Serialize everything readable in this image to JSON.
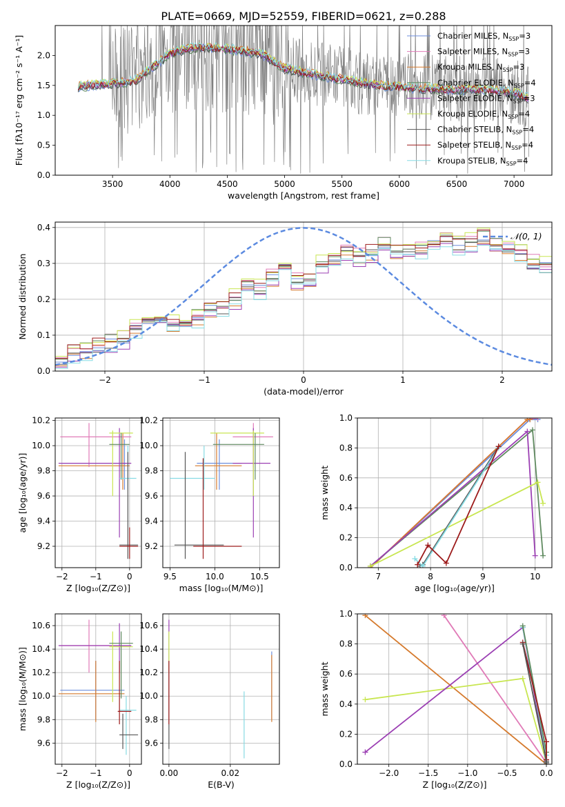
{
  "figure": {
    "title": "PLATE=0669, MJD=52559, FIBERID=0621, z=0.288"
  },
  "colors": {
    "chabrier_miles": "#6c8edc",
    "salpeter_miles": "#e07ab7",
    "kroupa_miles": "#d57a2d",
    "chabrier_elodie": "#5f8a5f",
    "salpeter_elodie": "#9b3fb3",
    "kroupa_elodie": "#c8e650",
    "chabrier_stelib": "#555555",
    "salpeter_stelib": "#9c1a1a",
    "kroupa_stelib": "#86dbe3",
    "data": "#808080",
    "normal": "#5b8ae0",
    "grid": "#b0b0b0"
  },
  "chart_data": [
    {
      "id": "spectrum",
      "type": "line",
      "xlabel": "wavelength [Angstrom, rest frame]",
      "ylabel": "Flux [fλ10⁻¹⁷ erg cm⁻² s⁻¹ A⁻¹]",
      "xlim": [
        3000,
        7330
      ],
      "ylim": [
        0,
        2.5
      ],
      "xticks": [
        3500,
        4000,
        4500,
        5000,
        5500,
        6000,
        6500,
        7000
      ],
      "yticks": [
        0.0,
        0.5,
        1.0,
        1.5,
        2.0
      ],
      "grid": false,
      "legend_position": "upper-right",
      "continuum_x": [
        3200,
        3500,
        3700,
        3800,
        4000,
        4200,
        4400,
        4600,
        4800,
        5000,
        5200,
        5500,
        5800,
        6100,
        6400,
        6700,
        7000,
        7130
      ],
      "continuum_y": [
        1.5,
        1.55,
        1.6,
        1.75,
        2.05,
        2.15,
        2.15,
        2.1,
        2.05,
        1.8,
        1.72,
        1.62,
        1.52,
        1.48,
        1.45,
        1.45,
        1.4,
        1.3
      ],
      "series": [
        {
          "name": "Chabrier MILES, N",
          "sub": "SSP",
          "suffix": "=3",
          "color_key": "chabrier_miles"
        },
        {
          "name": "Salpeter MILES, N",
          "sub": "SSP",
          "suffix": "=3",
          "color_key": "salpeter_miles"
        },
        {
          "name": "Kroupa MILES, N",
          "sub": "SSP",
          "suffix": "=3",
          "color_key": "kroupa_miles"
        },
        {
          "name": "Chabrier ELODIE, N",
          "sub": "SSP",
          "suffix": "=4",
          "color_key": "chabrier_elodie"
        },
        {
          "name": "Salpeter ELODIE, N",
          "sub": "SSP",
          "suffix": "=3",
          "color_key": "salpeter_elodie"
        },
        {
          "name": "Kroupa ELODIE, N",
          "sub": "SSP",
          "suffix": "=4",
          "color_key": "kroupa_elodie"
        },
        {
          "name": "Chabrier STELIB, N",
          "sub": "SSP",
          "suffix": "=4",
          "color_key": "chabrier_stelib"
        },
        {
          "name": "Salpeter STELIB, N",
          "sub": "SSP",
          "suffix": "=4",
          "color_key": "salpeter_stelib"
        },
        {
          "name": "Kroupa STELIB, N",
          "sub": "SSP",
          "suffix": "=4",
          "color_key": "kroupa_stelib"
        }
      ]
    },
    {
      "id": "residuals",
      "type": "histogram",
      "xlabel": "(data-model)/error",
      "ylabel": "Normed distribution",
      "xlim": [
        -2.5,
        2.5
      ],
      "ylim": [
        0,
        0.415
      ],
      "xticks": [
        -2,
        -1,
        0,
        1,
        2
      ],
      "yticks": [
        0.0,
        0.1,
        0.2,
        0.3,
        0.4
      ],
      "grid": true,
      "legend": "𝒩(0, 1)",
      "bin_width": 0.125,
      "bin_values": [
        0.04,
        0.05,
        0.06,
        0.07,
        0.08,
        0.09,
        0.12,
        0.14,
        0.14,
        0.13,
        0.13,
        0.15,
        0.17,
        0.18,
        0.2,
        0.24,
        0.23,
        0.26,
        0.29,
        0.25,
        0.25,
        0.3,
        0.31,
        0.33,
        0.32,
        0.33,
        0.35,
        0.33,
        0.34,
        0.34,
        0.35,
        0.36,
        0.35,
        0.36,
        0.37,
        0.35,
        0.34,
        0.33,
        0.3,
        0.29,
        0.28,
        0.26,
        0.22,
        0.23,
        0.2,
        0.2,
        0.17,
        0.16,
        0.15,
        0.14,
        0.14,
        0.12,
        0.12,
        0.11,
        0.09,
        0.1,
        0.08,
        0.07,
        0.06,
        0.07,
        0.06,
        0.06,
        0.05,
        0.04
      ],
      "offsets": [
        0.0,
        0.012,
        -0.01,
        0.008,
        -0.014,
        0.016,
        -0.006,
        0.01,
        -0.018
      ]
    },
    {
      "id": "age_vs_Z",
      "type": "errorbar",
      "xlabel": "Z [log₁₀(Z/Z⊙)]",
      "ylabel": "age  [log₁₀(age/yr)]",
      "xlim": [
        -2.2,
        0.35
      ],
      "ylim": [
        9.03,
        10.22
      ],
      "xticks": [
        -2,
        -1,
        0
      ],
      "yticks": [
        9.2,
        9.4,
        9.6,
        9.8,
        10.0,
        10.2
      ],
      "grid": true,
      "points": [
        {
          "c": "chabrier_miles",
          "x": -0.15,
          "xe": [
            -2.05,
            0.0
          ],
          "y": 9.86,
          "ye": [
            9.65,
            10.05
          ]
        },
        {
          "c": "kroupa_miles",
          "x": -0.2,
          "xe": [
            -2.1,
            0.0
          ],
          "y": 9.84,
          "ye": [
            9.65,
            10.1
          ]
        },
        {
          "c": "salpeter_miles",
          "x": -1.2,
          "xe": [
            -2.05,
            0.05
          ],
          "y": 10.07,
          "ye": [
            9.83,
            10.18
          ]
        },
        {
          "c": "salpeter_elodie",
          "x": -0.3,
          "xe": [
            -2.1,
            0.05
          ],
          "y": 9.86,
          "ye": [
            9.27,
            10.14
          ]
        },
        {
          "c": "kroupa_elodie",
          "x": -0.5,
          "xe": [
            -0.6,
            0.1
          ],
          "y": 10.1,
          "ye": [
            9.6,
            10.12
          ]
        },
        {
          "c": "chabrier_elodie",
          "x": -0.25,
          "xe": [
            -0.6,
            0.0
          ],
          "y": 10.01,
          "ye": [
            9.73,
            10.1
          ]
        },
        {
          "c": "kroupa_stelib",
          "x": -0.05,
          "xe": [
            -0.3,
            0.2
          ],
          "y": 9.74,
          "ye": [
            9.65,
            10.0
          ]
        },
        {
          "c": "chabrier_stelib",
          "x": -0.05,
          "xe": [
            -0.3,
            0.25
          ],
          "y": 9.21,
          "ye": [
            9.1,
            9.95
          ]
        },
        {
          "c": "salpeter_stelib",
          "x": 0.0,
          "xe": [
            -0.3,
            0.25
          ],
          "y": 9.2,
          "ye": [
            9.1,
            9.35
          ]
        }
      ]
    },
    {
      "id": "age_vs_mass",
      "type": "errorbar",
      "xlabel": "mass [log₁₀(M/M⊙)]",
      "ylabel": "",
      "xlim": [
        9.42,
        10.72
      ],
      "ylim": [
        9.03,
        10.22
      ],
      "xticks": [
        9.5,
        10.0,
        10.5
      ],
      "yticks": [
        9.2,
        9.4,
        9.6,
        9.8,
        10.0,
        10.2
      ],
      "grid": true,
      "points": [
        {
          "c": "chabrier_miles",
          "x": 10.05,
          "xe": [
            9.8,
            10.3
          ],
          "y": 9.86,
          "ye": [
            9.65,
            10.05
          ]
        },
        {
          "c": "kroupa_miles",
          "x": 10.02,
          "xe": [
            9.78,
            10.3
          ],
          "y": 9.84,
          "ye": [
            9.65,
            10.1
          ]
        },
        {
          "c": "salpeter_miles",
          "x": 10.43,
          "xe": [
            10.2,
            10.65
          ],
          "y": 10.07,
          "ye": [
            9.83,
            10.18
          ]
        },
        {
          "c": "salpeter_elodie",
          "x": 10.43,
          "xe": [
            10.2,
            10.62
          ],
          "y": 9.86,
          "ye": [
            9.27,
            10.14
          ]
        },
        {
          "c": "kroupa_elodie",
          "x": 10.43,
          "xe": [
            9.95,
            10.55
          ],
          "y": 10.1,
          "ye": [
            9.6,
            10.12
          ]
        },
        {
          "c": "chabrier_elodie",
          "x": 10.45,
          "xe": [
            9.98,
            10.55
          ],
          "y": 10.01,
          "ye": [
            9.73,
            10.1
          ]
        },
        {
          "c": "kroupa_stelib",
          "x": 9.88,
          "xe": [
            9.5,
            10.0
          ],
          "y": 9.74,
          "ye": [
            9.65,
            10.0
          ]
        },
        {
          "c": "chabrier_stelib",
          "x": 9.67,
          "xe": [
            9.55,
            10.1
          ],
          "y": 9.21,
          "ye": [
            9.1,
            9.95
          ]
        },
        {
          "c": "salpeter_stelib",
          "x": 9.87,
          "xe": [
            9.76,
            10.3
          ],
          "y": 9.2,
          "ye": [
            9.1,
            9.9
          ]
        }
      ]
    },
    {
      "id": "weight_vs_age",
      "type": "line",
      "xlabel": "age  [log₁₀(age/yr)]",
      "ylabel": "mass weight",
      "xlim": [
        6.6,
        10.32
      ],
      "ylim": [
        0,
        1.0
      ],
      "xticks": [
        7,
        8,
        9,
        10
      ],
      "yticks": [
        0.0,
        0.2,
        0.4,
        0.6,
        0.8,
        1.0
      ],
      "grid": true,
      "series": [
        {
          "c": "chabrier_miles",
          "x": [
            6.85,
            9.9,
            10.05
          ],
          "y": [
            0.0,
            0.99,
            0.99
          ]
        },
        {
          "c": "salpeter_miles",
          "x": [
            6.85,
            9.85,
            10.05
          ],
          "y": [
            0.0,
            0.99,
            1.0
          ]
        },
        {
          "c": "kroupa_miles",
          "x": [
            6.85,
            9.85,
            9.9
          ],
          "y": [
            0.0,
            0.99,
            0.99
          ]
        },
        {
          "c": "chabrier_elodie",
          "x": [
            6.85,
            9.95,
            10.15
          ],
          "y": [
            0.01,
            0.92,
            0.08
          ]
        },
        {
          "c": "salpeter_elodie",
          "x": [
            6.85,
            9.85,
            10.0
          ],
          "y": [
            0.01,
            0.91,
            0.08
          ]
        },
        {
          "c": "kroupa_elodie",
          "x": [
            6.85,
            10.05,
            10.15
          ],
          "y": [
            0.01,
            0.57,
            0.43
          ]
        },
        {
          "c": "chabrier_stelib",
          "x": [
            7.8,
            7.85,
            9.3
          ],
          "y": [
            0.01,
            0.02,
            0.81
          ]
        },
        {
          "c": "kroupa_stelib",
          "x": [
            7.7,
            7.85,
            9.3
          ],
          "y": [
            0.06,
            0.01,
            0.8
          ]
        },
        {
          "c": "salpeter_stelib",
          "x": [
            7.75,
            7.95,
            8.3,
            9.3
          ],
          "y": [
            0.02,
            0.15,
            0.03,
            0.81
          ]
        }
      ]
    },
    {
      "id": "mass_vs_Z",
      "type": "errorbar",
      "xlabel": "Z [log₁₀(Z/Z⊙)]",
      "ylabel": "mass [log₁₀(M/M⊙)]",
      "xlim": [
        -2.2,
        0.35
      ],
      "ylim": [
        9.42,
        10.7
      ],
      "xticks": [
        -2,
        -1,
        0
      ],
      "yticks": [
        9.6,
        9.8,
        10.0,
        10.2,
        10.4,
        10.6
      ],
      "grid": true,
      "points": [
        {
          "c": "chabrier_miles",
          "x": -1.0,
          "xe": [
            -2.05,
            -0.15
          ],
          "y": 10.05,
          "ye": [
            9.8,
            10.3
          ]
        },
        {
          "c": "kroupa_miles",
          "x": -1.0,
          "xe": [
            -2.1,
            -0.15
          ],
          "y": 10.02,
          "ye": [
            9.78,
            10.3
          ]
        },
        {
          "c": "salpeter_miles",
          "x": -1.2,
          "xe": [
            -2.05,
            0.05
          ],
          "y": 10.43,
          "ye": [
            10.2,
            10.65
          ]
        },
        {
          "c": "salpeter_elodie",
          "x": -0.3,
          "xe": [
            -2.1,
            0.05
          ],
          "y": 10.43,
          "ye": [
            10.2,
            10.62
          ]
        },
        {
          "c": "kroupa_elodie",
          "x": -0.5,
          "xe": [
            -0.6,
            0.1
          ],
          "y": 10.42,
          "ye": [
            9.95,
            10.55
          ]
        },
        {
          "c": "chabrier_elodie",
          "x": -0.25,
          "xe": [
            -0.6,
            0.1
          ],
          "y": 10.45,
          "ye": [
            9.98,
            10.55
          ]
        },
        {
          "c": "kroupa_stelib",
          "x": -0.1,
          "xe": [
            -0.3,
            0.2
          ],
          "y": 9.88,
          "ye": [
            9.5,
            10.0
          ]
        },
        {
          "c": "chabrier_stelib",
          "x": -0.2,
          "xe": [
            -0.3,
            0.25
          ],
          "y": 9.67,
          "ye": [
            9.55,
            9.85
          ]
        },
        {
          "c": "salpeter_stelib",
          "x": -0.3,
          "xe": [
            -0.35,
            0.05
          ],
          "y": 9.87,
          "ye": [
            9.76,
            10.3
          ]
        }
      ]
    },
    {
      "id": "mass_vs_EBV",
      "type": "errorbar",
      "xlabel": "E(B-V)",
      "ylabel": "",
      "xlim": [
        -0.002,
        0.036
      ],
      "ylim": [
        9.42,
        10.7
      ],
      "xticks": [
        0.0,
        0.02
      ],
      "xtick_labels": [
        "0.00",
        "0.02"
      ],
      "yticks": [
        9.6,
        9.8,
        10.0,
        10.2,
        10.4,
        10.6
      ],
      "grid": true,
      "points": [
        {
          "c": "chabrier_stelib",
          "x": 0.0,
          "y": 10.0,
          "ye": [
            9.55,
            10.3
          ]
        },
        {
          "c": "salpeter_elodie",
          "x": 0.0,
          "y": 10.43,
          "ye": [
            10.2,
            10.65
          ]
        },
        {
          "c": "kroupa_elodie",
          "x": 0.0,
          "y": 10.42,
          "ye": [
            10.2,
            10.55
          ]
        },
        {
          "c": "salpeter_stelib",
          "x": 0.0,
          "y": 9.9,
          "ye": [
            9.76,
            10.3
          ]
        },
        {
          "c": "kroupa_stelib",
          "x": 0.0245,
          "y": 9.88,
          "ye": [
            9.47,
            10.04
          ]
        },
        {
          "c": "chabrier_miles",
          "x": 0.0335,
          "y": 10.05,
          "ye": [
            9.8,
            10.38
          ]
        },
        {
          "c": "kroupa_miles",
          "x": 0.0335,
          "y": 10.02,
          "ye": [
            9.78,
            10.35
          ]
        }
      ]
    },
    {
      "id": "weight_vs_Z",
      "type": "line",
      "xlabel": "Z [log₁₀(Z/Z⊙)]",
      "ylabel": "mass weight",
      "xlim": [
        -2.4,
        0.07
      ],
      "ylim": [
        0,
        1.0
      ],
      "xticks": [
        -2.0,
        -1.5,
        -1.0,
        -0.5,
        0.0
      ],
      "yticks": [
        0.0,
        0.2,
        0.4,
        0.6,
        0.8,
        1.0
      ],
      "grid": true,
      "series": [
        {
          "c": "kroupa_miles",
          "x": [
            -2.3,
            0.0,
            0.0
          ],
          "y": [
            0.99,
            0.0,
            0.01
          ]
        },
        {
          "c": "salpeter_miles",
          "x": [
            -1.3,
            0.0,
            0.0
          ],
          "y": [
            0.99,
            0.01,
            0.0
          ]
        },
        {
          "c": "kroupa_elodie",
          "x": [
            -2.3,
            -0.3,
            0.0
          ],
          "y": [
            0.43,
            0.57,
            0.01
          ]
        },
        {
          "c": "salpeter_elodie",
          "x": [
            -2.3,
            -0.3,
            0.0
          ],
          "y": [
            0.08,
            0.91,
            0.01
          ]
        },
        {
          "c": "kroupa_stelib",
          "x": [
            -0.3,
            0.0,
            0.0
          ],
          "y": [
            0.91,
            0.06,
            0.01
          ]
        },
        {
          "c": "chabrier_elodie",
          "x": [
            -0.3,
            0.0,
            0.0
          ],
          "y": [
            0.92,
            0.08,
            0.0
          ]
        },
        {
          "c": "salpeter_stelib",
          "x": [
            -0.3,
            0.0,
            0.0
          ],
          "y": [
            0.81,
            0.15,
            0.03
          ]
        },
        {
          "c": "chabrier_stelib",
          "x": [
            -0.3,
            0.0,
            0.0
          ],
          "y": [
            0.8,
            0.02,
            0.01
          ]
        }
      ]
    }
  ]
}
